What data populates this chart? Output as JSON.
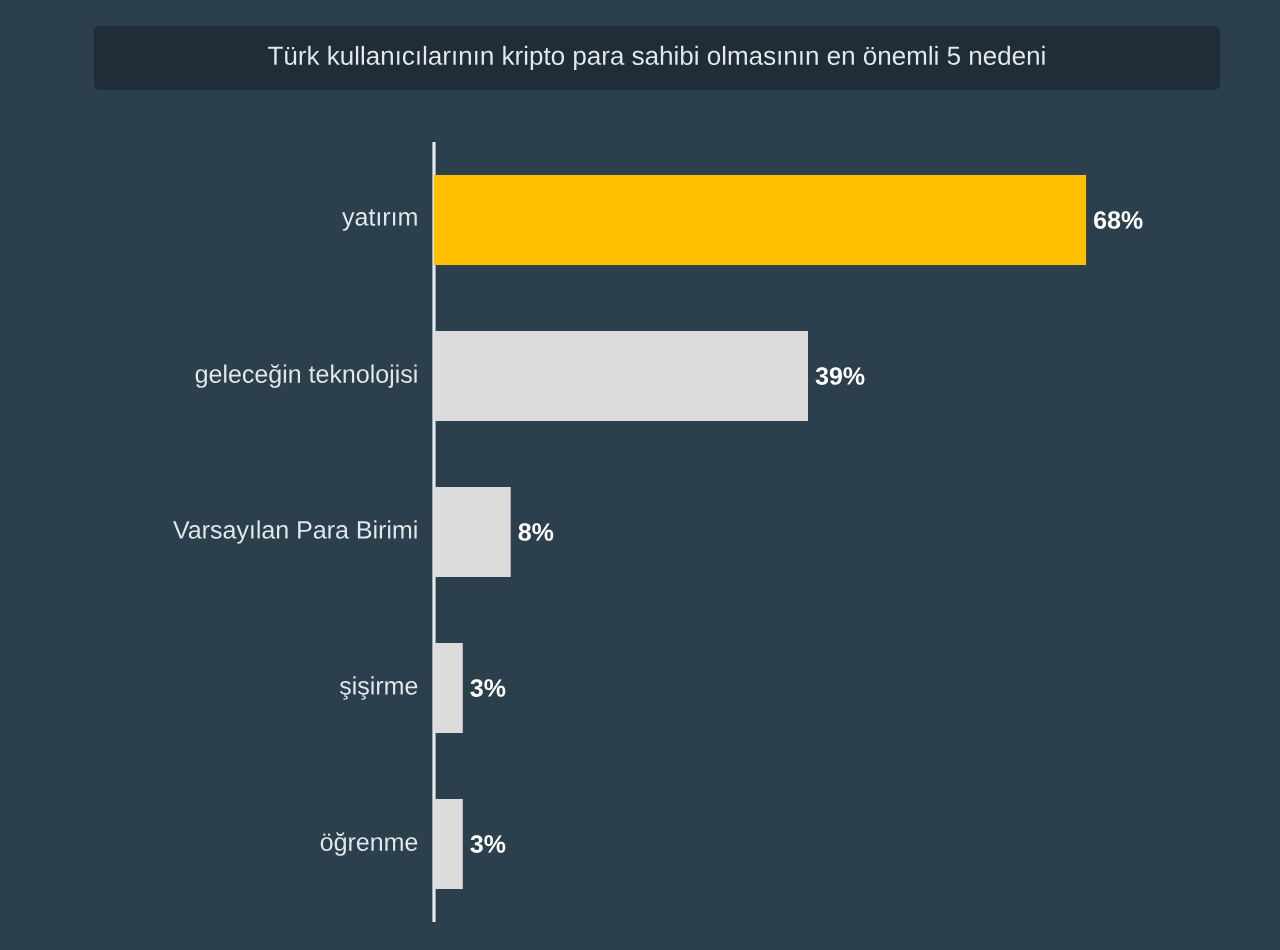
{
  "chart_data": {
    "type": "bar",
    "orientation": "horizontal",
    "title": "Türk kullanıcılarının kripto para sahibi olmasının en önemli 5 nedeni",
    "categories": [
      "yatırım",
      "geleceğin teknolojisi",
      "Varsayılan Para Birimi",
      "şişirme",
      "öğrenme"
    ],
    "values": [
      68,
      39,
      8,
      3,
      3
    ],
    "colors": [
      "#ffc000",
      "#dcdcdc",
      "#dcdcdc",
      "#dcdcdc",
      "#dcdcdc"
    ],
    "value_labels": [
      "68%",
      "39%",
      "8%",
      "3%",
      "3%"
    ]
  }
}
